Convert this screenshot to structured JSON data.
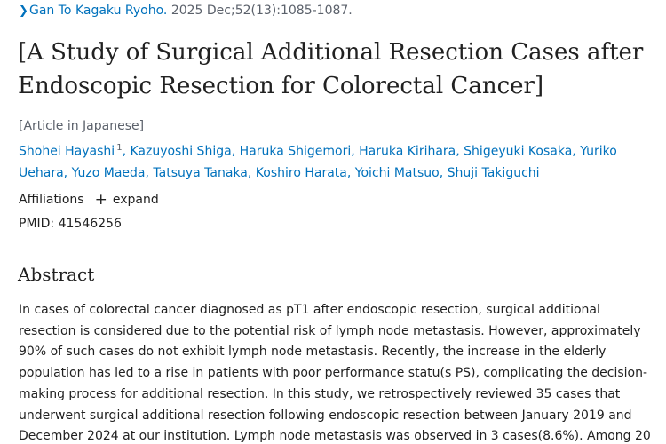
{
  "citation": {
    "journal": "Gan To Kagaku Ryoho.",
    "details": " 2025 Dec;52(13):1085-1087."
  },
  "article": {
    "title": "[A Study of Surgical Additional Resection Cases after Endoscopic Resection for Colorectal Cancer]",
    "language_note": "[Article in Japanese]"
  },
  "authors": [
    {
      "name": "Shohei Hayashi",
      "sup": "1"
    },
    {
      "name": "Kazuyoshi Shiga"
    },
    {
      "name": "Haruka Shigemori"
    },
    {
      "name": "Haruka Kirihara"
    },
    {
      "name": "Shigeyuki Kosaka"
    },
    {
      "name": "Yuriko Uehara"
    },
    {
      "name": "Yuzo Maeda"
    },
    {
      "name": "Tatsuya Tanaka"
    },
    {
      "name": "Koshiro Harata"
    },
    {
      "name": "Yoichi Matsuo"
    },
    {
      "name": "Shuji Takiguchi"
    }
  ],
  "affiliations": {
    "label": "Affiliations",
    "expand_label": "expand"
  },
  "pmid": {
    "text": "PMID: 41546256"
  },
  "abstract": {
    "heading": "Abstract",
    "text": "In cases of colorectal cancer diagnosed as pT1 after endoscopic resection, surgical additional resection is considered due to the potential risk of lymph node metastasis. However, approximately 90% of such cases do not exhibit lymph node metastasis. Recently, the increase in the elderly population has led to a rise in patients with poor performance statu(s PS), complicating the decision-making process for additional resection. In this study, we retrospectively reviewed 35 cases that underwent surgical additional resection following endoscopic resection between January 2019 and December 2024 at our institution. Lymph node metastasis was observed in 3 cases(8.6%). Among 20"
  }
}
